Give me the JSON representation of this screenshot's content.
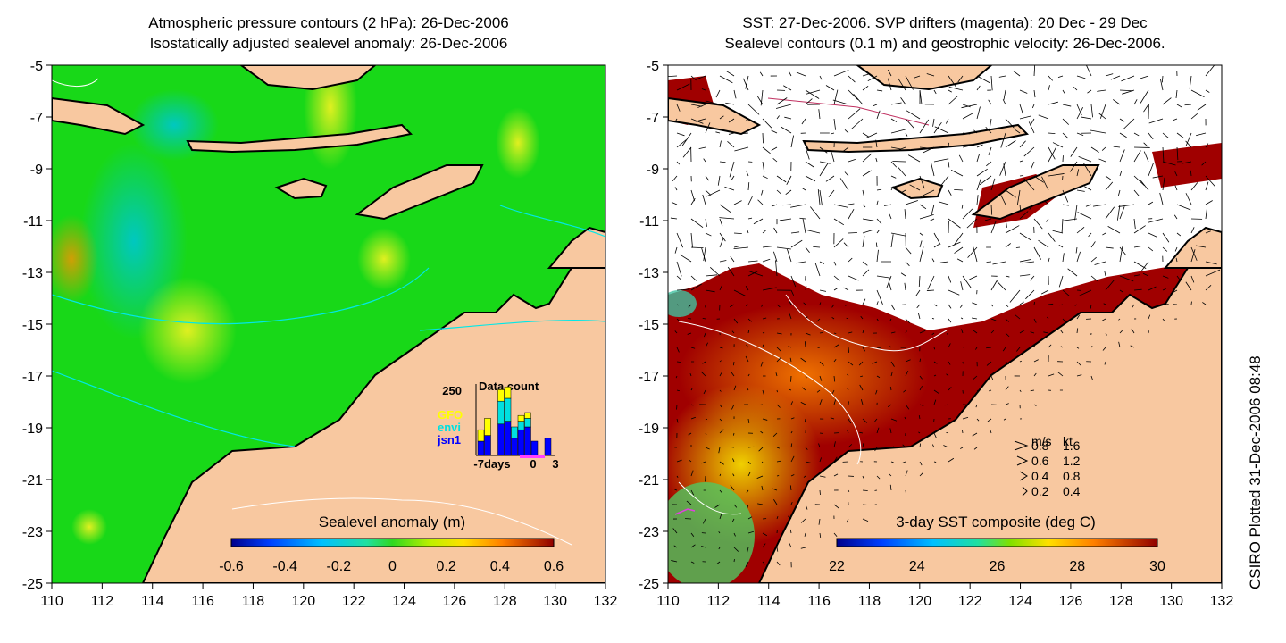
{
  "left_panel": {
    "title_line1": "Atmospheric pressure contours (2 hPa): 26-Dec-2006",
    "title_line2": "Isostatically adjusted sealevel anomaly: 26-Dec-2006",
    "colorbar": {
      "label": "Sealevel anomaly (m)",
      "ticks": [
        "-0.6",
        "-0.4",
        "-0.2",
        "0",
        "0.2",
        "0.4",
        "0.6"
      ],
      "range": [
        -0.6,
        0.6
      ]
    },
    "inset": {
      "title": "Data count",
      "y_max_label": "250",
      "legend": [
        {
          "name": "GFO",
          "color": "#ffff00"
        },
        {
          "name": "envi",
          "color": "#00e0e0"
        },
        {
          "name": "jsn1",
          "color": "#0000ff"
        }
      ],
      "x_labels": [
        "-7days",
        "0",
        "3"
      ],
      "bars": [
        {
          "day": -7,
          "jsn1": 50,
          "envi": 0,
          "gfo": 40
        },
        {
          "day": -6,
          "jsn1": 70,
          "envi": 0,
          "gfo": 60
        },
        {
          "day": -5,
          "jsn1": 0,
          "envi": 0,
          "gfo": 0
        },
        {
          "day": -4,
          "jsn1": 110,
          "envi": 80,
          "gfo": 40
        },
        {
          "day": -3,
          "jsn1": 120,
          "envi": 80,
          "gfo": 40
        },
        {
          "day": -2,
          "jsn1": 60,
          "envi": 40,
          "gfo": 0
        },
        {
          "day": -1,
          "jsn1": 90,
          "envi": 30,
          "gfo": 20
        },
        {
          "day": 0,
          "jsn1": 100,
          "envi": 30,
          "gfo": 20
        },
        {
          "day": 1,
          "jsn1": 50,
          "envi": 0,
          "gfo": 0
        },
        {
          "day": 2,
          "jsn1": 0,
          "envi": 0,
          "gfo": 0
        },
        {
          "day": 3,
          "jsn1": 60,
          "envi": 0,
          "gfo": 0
        }
      ]
    }
  },
  "right_panel": {
    "title_line1": "SST: 27-Dec-2006. SVP drifters (magenta): 20 Dec - 29 Dec",
    "title_line2": "Sealevel contours (0.1 m) and geostrophic velocity: 26-Dec-2006.",
    "colorbar": {
      "label": "3-day SST composite (deg C)",
      "ticks": [
        "22",
        "24",
        "26",
        "28",
        "30"
      ],
      "range": [
        22,
        30
      ]
    },
    "velocity_legend": {
      "header_ms": "m/s",
      "header_kt": "kt",
      "rows": [
        {
          "ms": "0.8",
          "kt": "1.6"
        },
        {
          "ms": "0.6",
          "kt": "1.2"
        },
        {
          "ms": "0.4",
          "kt": "0.8"
        },
        {
          "ms": "0.2",
          "kt": "0.4"
        }
      ]
    }
  },
  "axes": {
    "x_ticks": [
      "110",
      "112",
      "114",
      "116",
      "118",
      "120",
      "122",
      "124",
      "126",
      "128",
      "130",
      "132"
    ],
    "y_ticks": [
      "-5",
      "-7",
      "-9",
      "-11",
      "-13",
      "-15",
      "-17",
      "-19",
      "-21",
      "-23",
      "-25"
    ],
    "lon_range": [
      110,
      132
    ],
    "lat_range": [
      -25,
      -5
    ]
  },
  "credit": "CSIRO Plotted 31-Dec-2006 08:48",
  "colors": {
    "land": "#f8c8a0",
    "sea_green": "#18d818",
    "sst_dark_red": "#a00000",
    "contour_cyan": "#00e8e8"
  }
}
